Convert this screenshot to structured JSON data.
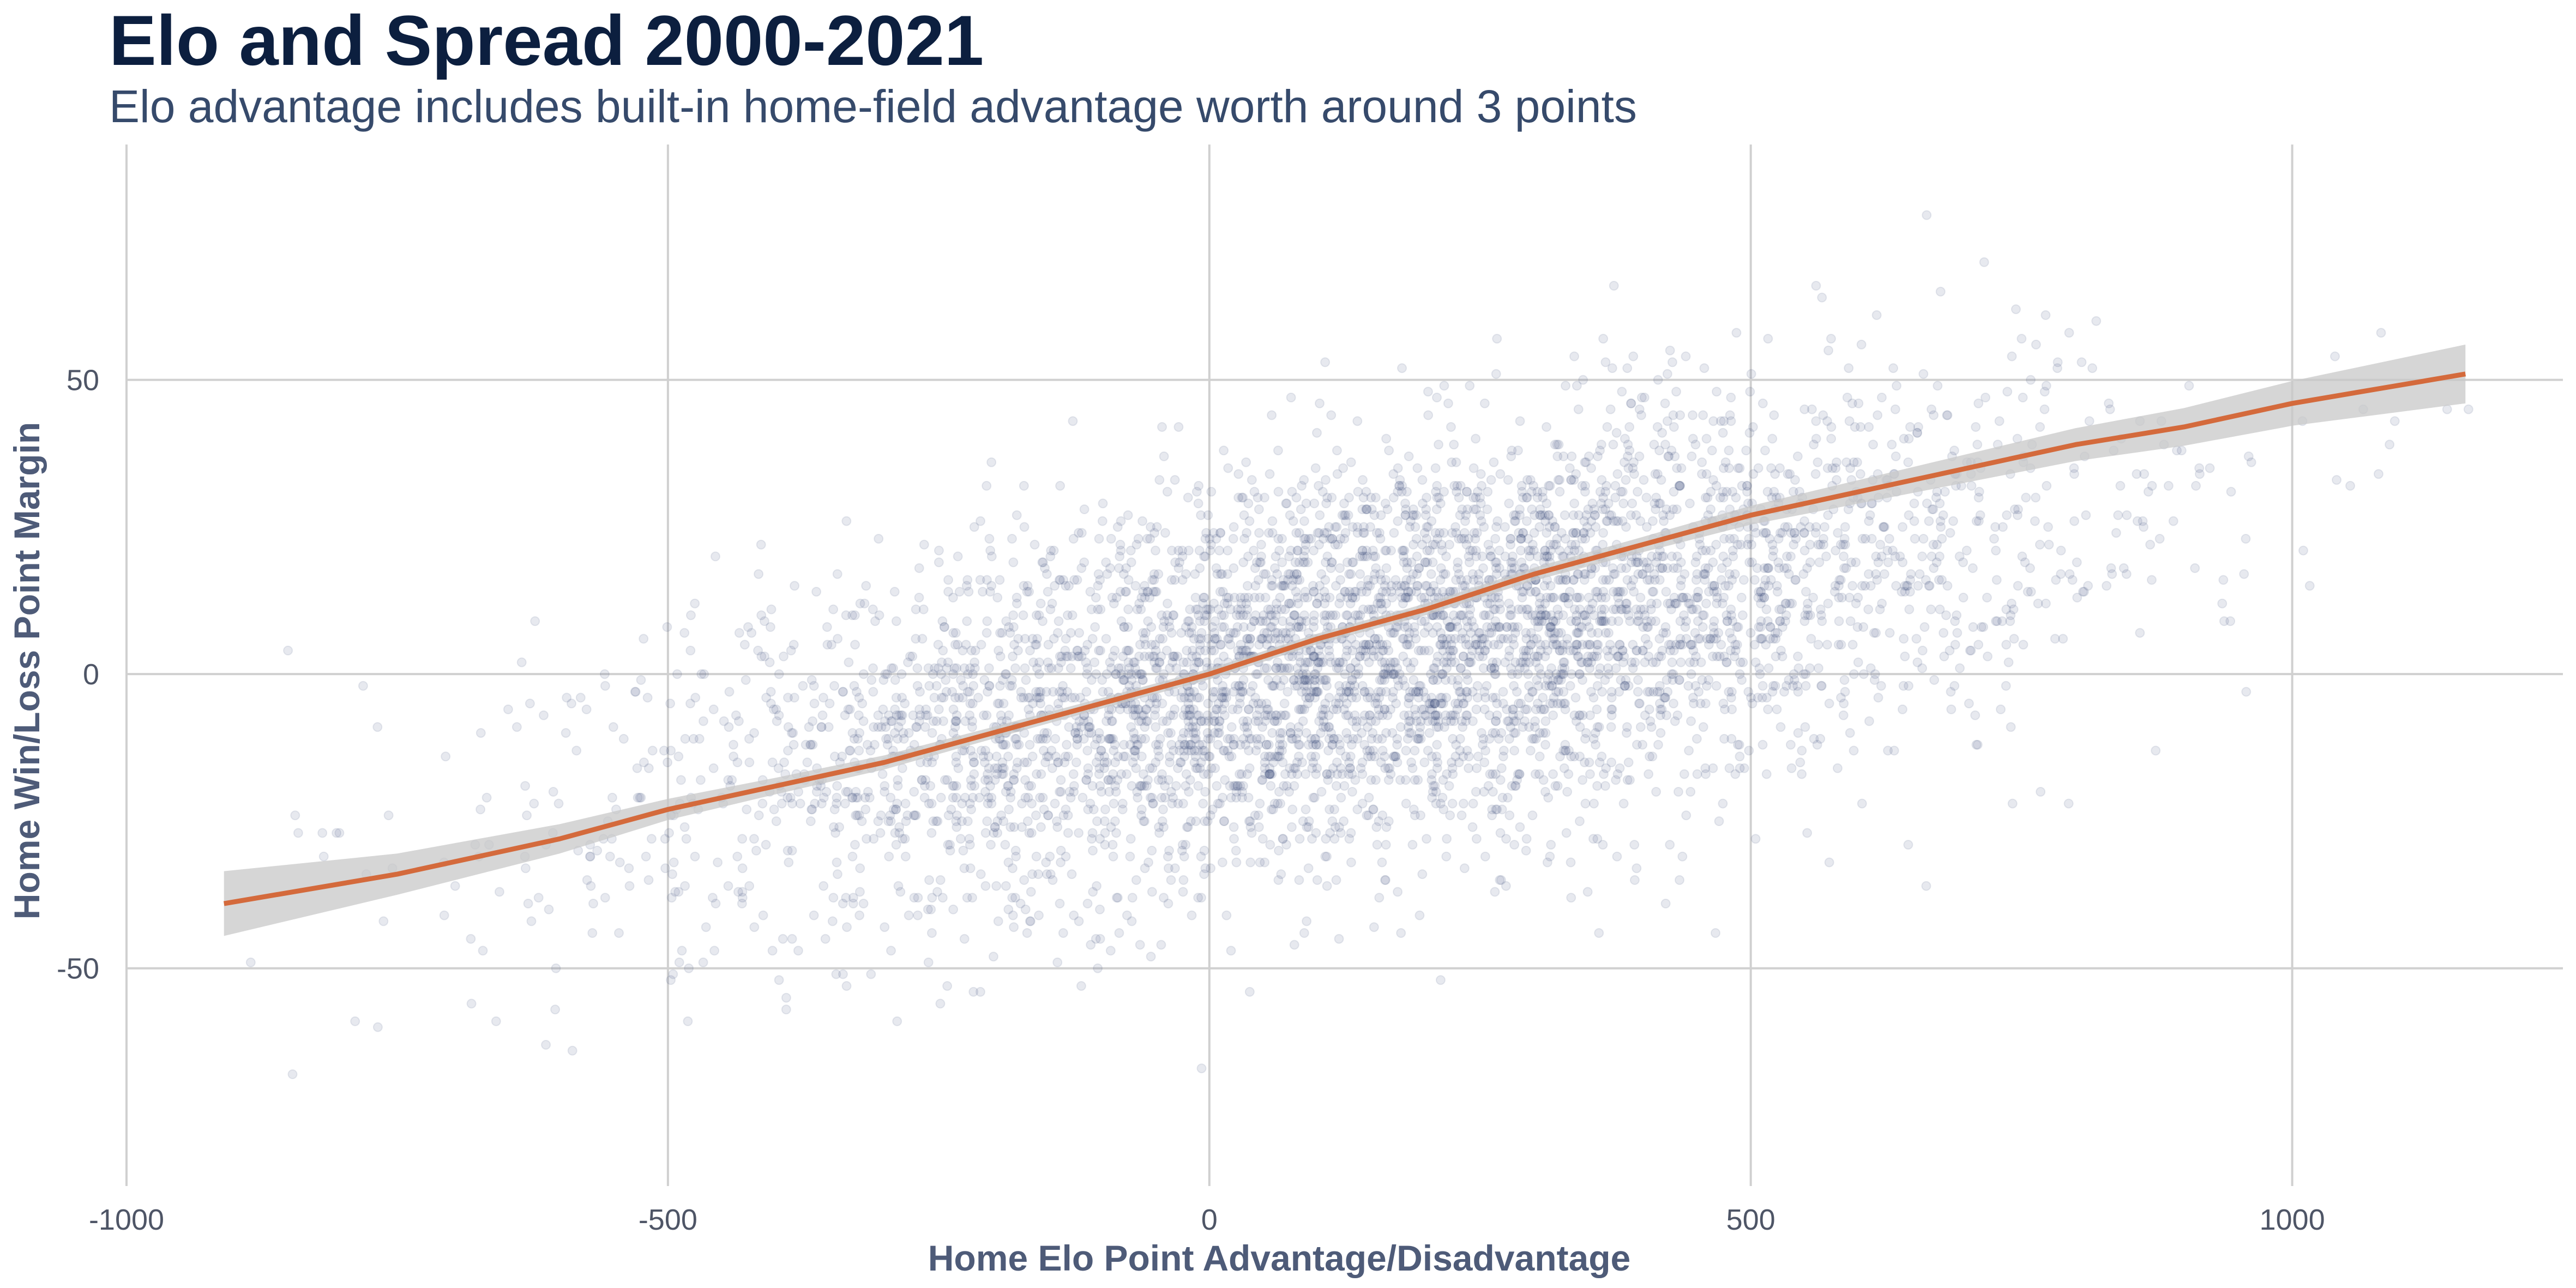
{
  "header": {
    "title": "Elo and Spread 2000-2021",
    "subtitle": "Elo advantage includes built-in home-field advantage worth around 3 points"
  },
  "colors": {
    "points": "#3a4a7a",
    "trend": "#d46a3c",
    "ribbon": "#c8c8c8",
    "grid": "#d0d0d0",
    "title": "#0c1f3f",
    "subtitle": "#364a6b",
    "axis_label": "#4e5b78",
    "tick": "#4e5566"
  },
  "chart_data": {
    "type": "scatter",
    "title": "Elo and Spread 2000-2021",
    "subtitle": "Elo advantage includes built-in home-field advantage worth around 3 points",
    "xlabel": "Home Elo Point Advantage/Disadvantage",
    "ylabel": "Home Win/Loss Point Margin",
    "xlim": [
      -1000,
      1250
    ],
    "ylim": [
      -87,
      90
    ],
    "x_ticks": [
      -1000,
      -500,
      0,
      500,
      1000
    ],
    "x_tick_labels": [
      "-1000",
      "-500",
      "0",
      "500",
      "1000"
    ],
    "y_ticks": [
      -50,
      0,
      50
    ],
    "y_tick_labels": [
      "-50",
      "0",
      "50"
    ],
    "grid": "major only",
    "legend": "none",
    "point_alpha": 0.12,
    "points_approx_count": 5000,
    "point_distribution": {
      "x_mean": 150,
      "x_sd": 310,
      "y_mean": 3,
      "y_sd": 20,
      "correlation": 0.55
    },
    "trend": {
      "method": "loess smooth",
      "x": [
        -910,
        -750,
        -600,
        -500,
        -400,
        -300,
        -200,
        -100,
        0,
        100,
        200,
        300,
        400,
        500,
        600,
        700,
        800,
        900,
        1000,
        1160
      ],
      "y": [
        -39,
        -34,
        -28,
        -23,
        -19,
        -15,
        -10,
        -5,
        0,
        6,
        11,
        17,
        22,
        27,
        31,
        35,
        39,
        42,
        46,
        51
      ],
      "band_half_width": [
        5.5,
        3.5,
        2.5,
        1.8,
        1.4,
        1.2,
        1.0,
        0.9,
        0.9,
        0.9,
        1.0,
        1.1,
        1.3,
        1.6,
        2.0,
        2.4,
        2.8,
        3.2,
        3.8,
        5.0
      ]
    }
  }
}
